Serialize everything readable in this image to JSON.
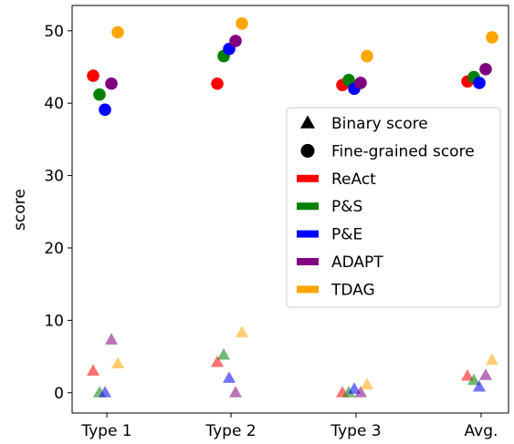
{
  "chart_data": {
    "type": "scatter",
    "title": "",
    "xlabel": "",
    "ylabel": "score",
    "categories": [
      "Type 1",
      "Type 2",
      "Type 3",
      "Avg."
    ],
    "yticks": [
      "0",
      "10",
      "20",
      "30",
      "40",
      "50"
    ],
    "ylim": [
      -2.8,
      53.5
    ],
    "grid": false,
    "legend_position": "center-right",
    "markers": [
      {
        "name": "Binary score",
        "shape": "triangle"
      },
      {
        "name": "Fine-grained score",
        "shape": "circle"
      }
    ],
    "series": [
      {
        "name": "ReAct",
        "color": "#ff0000",
        "fine_grained": [
          43.8,
          42.7,
          42.5,
          43.0
        ],
        "binary": [
          3.0,
          4.2,
          0.0,
          2.3
        ]
      },
      {
        "name": "P&S",
        "color": "#008000",
        "fine_grained": [
          41.2,
          46.5,
          43.2,
          43.6
        ],
        "binary": [
          0.0,
          5.2,
          0.0,
          1.7
        ]
      },
      {
        "name": "P&E",
        "color": "#0000ff",
        "fine_grained": [
          39.1,
          47.5,
          42.0,
          42.8
        ],
        "binary": [
          0.0,
          2.0,
          0.5,
          0.8
        ]
      },
      {
        "name": "ADAPT",
        "color": "#800080",
        "fine_grained": [
          42.7,
          48.6,
          42.8,
          44.7
        ],
        "binary": [
          7.3,
          0.0,
          0.0,
          2.4
        ]
      },
      {
        "name": "TDAG",
        "color": "#ffa500",
        "fine_grained": [
          49.8,
          51.0,
          46.5,
          49.1
        ],
        "binary": [
          4.0,
          8.3,
          1.1,
          4.5
        ]
      }
    ]
  }
}
